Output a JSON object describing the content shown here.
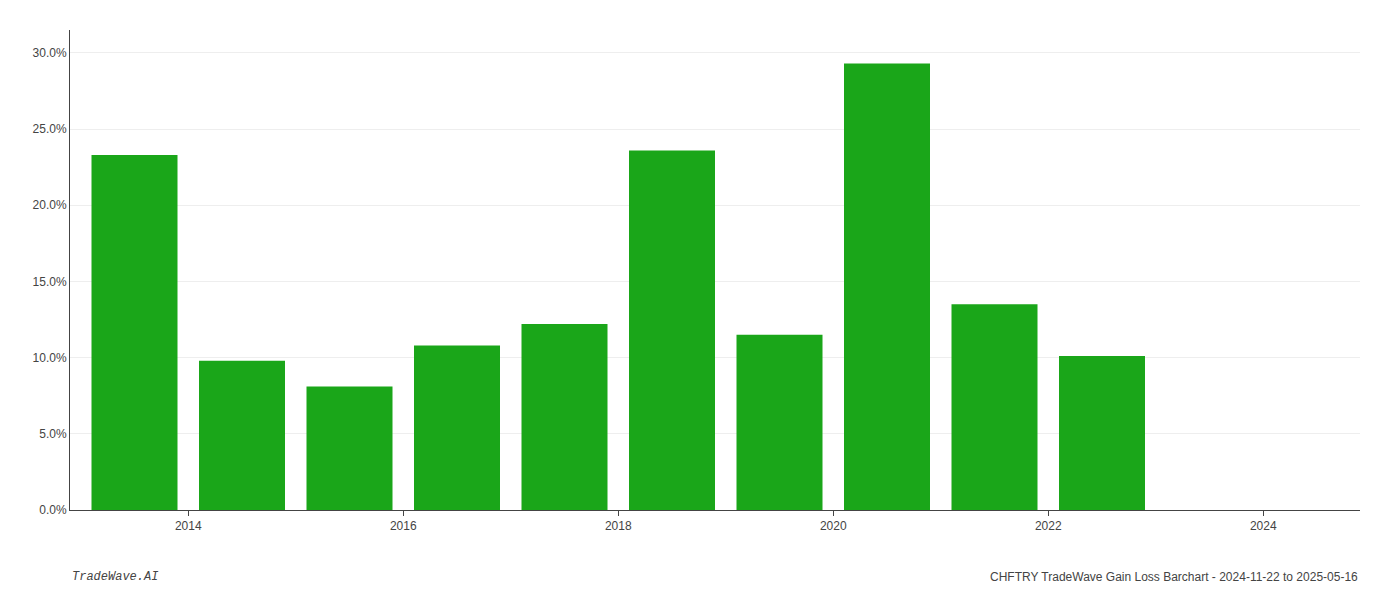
{
  "chart_data": {
    "type": "bar",
    "x": [
      2013,
      2014,
      2015,
      2016,
      2017,
      2018,
      2019,
      2020,
      2021,
      2022,
      2023
    ],
    "values": [
      0.233,
      0.098,
      0.081,
      0.108,
      0.122,
      0.236,
      0.115,
      0.293,
      0.135,
      0.101,
      0.0
    ],
    "color": "#1aa619",
    "xlim": [
      2012.4,
      2024.4
    ],
    "xticks": [
      {
        "value": 2013.5,
        "label": "2014"
      },
      {
        "value": 2015.5,
        "label": "2016"
      },
      {
        "value": 2017.5,
        "label": "2018"
      },
      {
        "value": 2019.5,
        "label": "2020"
      },
      {
        "value": 2021.5,
        "label": "2022"
      },
      {
        "value": 2023.5,
        "label": "2024"
      }
    ],
    "ylim": [
      0,
      0.315
    ],
    "yticks": [
      {
        "value": 0.0,
        "label": "0.0%"
      },
      {
        "value": 0.05,
        "label": "5.0%"
      },
      {
        "value": 0.1,
        "label": "10.0%"
      },
      {
        "value": 0.15,
        "label": "15.0%"
      },
      {
        "value": 0.2,
        "label": "20.0%"
      },
      {
        "value": 0.25,
        "label": "25.0%"
      },
      {
        "value": 0.3,
        "label": "30.0%"
      }
    ],
    "grid": true,
    "annotations": [
      "TradeWave.AI",
      "CHFTRY TradeWave Gain Loss Barchart - 2024-11-22 to 2025-05-16"
    ]
  }
}
